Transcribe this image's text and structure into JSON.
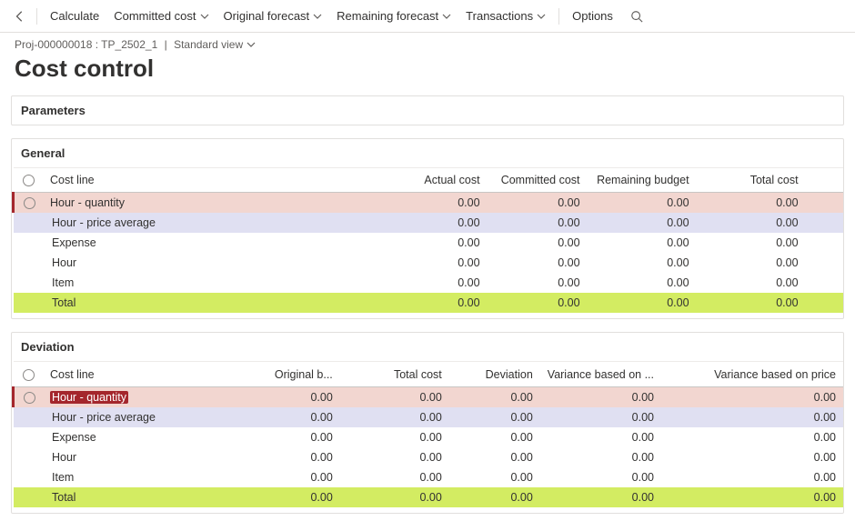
{
  "colors": {
    "pink_row": "#f2d6d0",
    "lavender_row": "#e0e0f2",
    "lime_row": "#d3ec62",
    "accent_red": "#a4262c",
    "border": "#e1dfdd"
  },
  "toolbar": {
    "calculate": "Calculate",
    "committed_cost": "Committed cost",
    "original_forecast": "Original forecast",
    "remaining_forecast": "Remaining forecast",
    "transactions": "Transactions",
    "options": "Options"
  },
  "breadcrumb": {
    "project_id": "Proj-000000018 : TP_2502_1",
    "view_label": "Standard view"
  },
  "page": {
    "title": "Cost control"
  },
  "sections": {
    "parameters": {
      "title": "Parameters"
    },
    "general": {
      "title": "General",
      "columns": {
        "cost_line": "Cost line",
        "actual_cost": "Actual cost",
        "committed_cost": "Committed cost",
        "remaining_budget": "Remaining budget",
        "total_cost": "Total cost"
      },
      "rows": [
        {
          "label": "Hour - quantity",
          "style": "pink",
          "radio": true,
          "actual": "0.00",
          "committed": "0.00",
          "remaining": "0.00",
          "total": "0.00"
        },
        {
          "label": "Hour - price average",
          "style": "lavender",
          "radio": false,
          "indent": true,
          "actual": "0.00",
          "committed": "0.00",
          "remaining": "0.00",
          "total": "0.00"
        },
        {
          "label": "Expense",
          "style": "plain",
          "radio": false,
          "indent": true,
          "actual": "0.00",
          "committed": "0.00",
          "remaining": "0.00",
          "total": "0.00"
        },
        {
          "label": "Hour",
          "style": "plain",
          "radio": false,
          "indent": true,
          "actual": "0.00",
          "committed": "0.00",
          "remaining": "0.00",
          "total": "0.00"
        },
        {
          "label": "Item",
          "style": "plain",
          "radio": false,
          "indent": true,
          "actual": "0.00",
          "committed": "0.00",
          "remaining": "0.00",
          "total": "0.00"
        },
        {
          "label": "Total",
          "style": "lime",
          "radio": false,
          "indent": true,
          "actual": "0.00",
          "committed": "0.00",
          "remaining": "0.00",
          "total": "0.00"
        }
      ]
    },
    "deviation": {
      "title": "Deviation",
      "columns": {
        "cost_line": "Cost line",
        "original_b": "Original b...",
        "total_cost": "Total cost",
        "deviation": "Deviation",
        "variance_qty": "Variance based on ...",
        "variance_price": "Variance based on price"
      },
      "rows": [
        {
          "label": "Hour - quantity",
          "style": "pink",
          "radio": true,
          "highlight_label": true,
          "original": "0.00",
          "total": "0.00",
          "deviation": "0.00",
          "vq": "0.00",
          "vp": "0.00"
        },
        {
          "label": "Hour - price average",
          "style": "lavender",
          "radio": false,
          "indent": true,
          "original": "0.00",
          "total": "0.00",
          "deviation": "0.00",
          "vq": "0.00",
          "vp": "0.00"
        },
        {
          "label": "Expense",
          "style": "plain",
          "radio": false,
          "indent": true,
          "original": "0.00",
          "total": "0.00",
          "deviation": "0.00",
          "vq": "0.00",
          "vp": "0.00"
        },
        {
          "label": "Hour",
          "style": "plain",
          "radio": false,
          "indent": true,
          "original": "0.00",
          "total": "0.00",
          "deviation": "0.00",
          "vq": "0.00",
          "vp": "0.00"
        },
        {
          "label": "Item",
          "style": "plain",
          "radio": false,
          "indent": true,
          "original": "0.00",
          "total": "0.00",
          "deviation": "0.00",
          "vq": "0.00",
          "vp": "0.00"
        },
        {
          "label": "Total",
          "style": "lime",
          "radio": false,
          "indent": true,
          "original": "0.00",
          "total": "0.00",
          "deviation": "0.00",
          "vq": "0.00",
          "vp": "0.00"
        }
      ]
    }
  }
}
